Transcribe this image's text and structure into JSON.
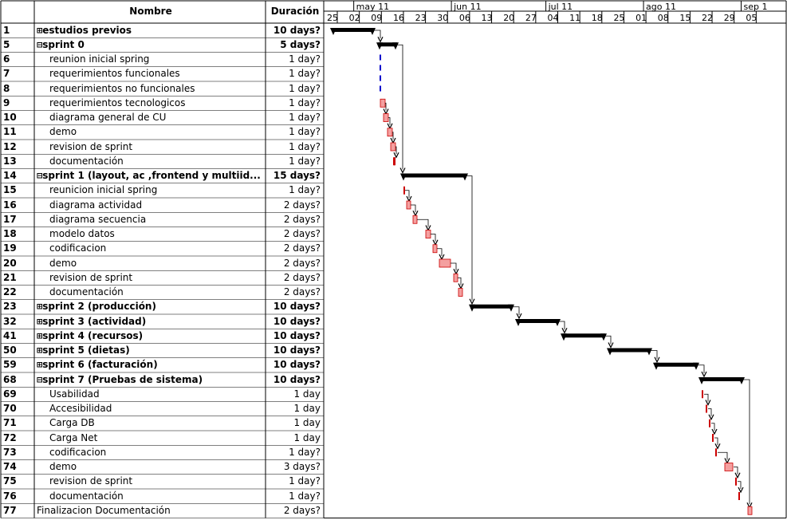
{
  "header": {
    "col_name": "Nombre",
    "col_duration": "Duración"
  },
  "months": [
    "may 11",
    "jun 11",
    "jul 11",
    "ago 11",
    "sep 1"
  ],
  "days": [
    "25",
    "02",
    "09",
    "16",
    "23",
    "30",
    "06",
    "13",
    "20",
    "27",
    "04",
    "11",
    "18",
    "25",
    "01",
    "08",
    "15",
    "22",
    "29",
    "05"
  ],
  "colors": {
    "bar": "#000000",
    "task_fill": "#f4a0a0",
    "task_border": "#cc0000",
    "dash": "#0000cc"
  },
  "rows": [
    {
      "id": "1",
      "name": "estudios previos",
      "dur": "10 days?",
      "summary": true,
      "marker": "⊞",
      "indent": false
    },
    {
      "id": "5",
      "name": "sprint 0",
      "dur": "5 days?",
      "summary": true,
      "marker": "⊟",
      "indent": false
    },
    {
      "id": "6",
      "name": "reunion inicial spring",
      "dur": "1 day?",
      "summary": false,
      "indent": true
    },
    {
      "id": "7",
      "name": "requerimientos funcionales",
      "dur": "1 day?",
      "summary": false,
      "indent": true
    },
    {
      "id": "8",
      "name": "requerimientos no funcionales",
      "dur": "1 day?",
      "summary": false,
      "indent": true
    },
    {
      "id": "9",
      "name": "requerimientos tecnologicos",
      "dur": "1 day?",
      "summary": false,
      "indent": true
    },
    {
      "id": "10",
      "name": "diagrama general de CU",
      "dur": "1 day?",
      "summary": false,
      "indent": true
    },
    {
      "id": "11",
      "name": "demo",
      "dur": "1 day?",
      "summary": false,
      "indent": true
    },
    {
      "id": "12",
      "name": "revision de sprint",
      "dur": "1 day?",
      "summary": false,
      "indent": true
    },
    {
      "id": "13",
      "name": "documentación",
      "dur": "1 day?",
      "summary": false,
      "indent": true
    },
    {
      "id": "14",
      "name": "sprint 1 (layout, ac ,frontend y multiid...",
      "dur": "15 days?",
      "summary": true,
      "marker": "⊟",
      "indent": false
    },
    {
      "id": "15",
      "name": "reunicion inicial spring",
      "dur": "1 day?",
      "summary": false,
      "indent": true
    },
    {
      "id": "16",
      "name": "diagrama actividad",
      "dur": "2 days?",
      "summary": false,
      "indent": true
    },
    {
      "id": "17",
      "name": "diagrama secuencia",
      "dur": "2 days?",
      "summary": false,
      "indent": true
    },
    {
      "id": "18",
      "name": "modelo datos",
      "dur": "2 days?",
      "summary": false,
      "indent": true
    },
    {
      "id": "19",
      "name": "codificacion",
      "dur": "2 days?",
      "summary": false,
      "indent": true
    },
    {
      "id": "20",
      "name": "demo",
      "dur": "2 days?",
      "summary": false,
      "indent": true
    },
    {
      "id": "21",
      "name": "revision de sprint",
      "dur": "2 days?",
      "summary": false,
      "indent": true
    },
    {
      "id": "22",
      "name": "documentación",
      "dur": "2 days?",
      "summary": false,
      "indent": true
    },
    {
      "id": "23",
      "name": "sprint 2 (producción)",
      "dur": "10 days?",
      "summary": true,
      "marker": "⊞",
      "indent": false
    },
    {
      "id": "32",
      "name": "sprint 3 (actividad)",
      "dur": "10 days?",
      "summary": true,
      "marker": "⊞",
      "indent": false
    },
    {
      "id": "41",
      "name": "sprint 4 (recursos)",
      "dur": "10 days?",
      "summary": true,
      "marker": "⊞",
      "indent": false
    },
    {
      "id": "50",
      "name": "sprint 5 (dietas)",
      "dur": "10 days?",
      "summary": true,
      "marker": "⊞",
      "indent": false
    },
    {
      "id": "59",
      "name": "sprint 6 (facturación)",
      "dur": "10 days?",
      "summary": true,
      "marker": "⊞",
      "indent": false
    },
    {
      "id": "68",
      "name": "sprint 7 (Pruebas de sistema)",
      "dur": "10 days?",
      "summary": true,
      "marker": "⊟",
      "indent": false
    },
    {
      "id": "69",
      "name": "Usabilidad",
      "dur": "1 day",
      "summary": false,
      "indent": true
    },
    {
      "id": "70",
      "name": "Accesibilidad",
      "dur": "1 day",
      "summary": false,
      "indent": true
    },
    {
      "id": "71",
      "name": "Carga DB",
      "dur": "1 day",
      "summary": false,
      "indent": true
    },
    {
      "id": "72",
      "name": "Carga Net",
      "dur": "1 day",
      "summary": false,
      "indent": true
    },
    {
      "id": "73",
      "name": "codificacion",
      "dur": "1 day?",
      "summary": false,
      "indent": true
    },
    {
      "id": "74",
      "name": "demo",
      "dur": "3 days?",
      "summary": false,
      "indent": true
    },
    {
      "id": "75",
      "name": "revision de sprint",
      "dur": "1 day?",
      "summary": false,
      "indent": true
    },
    {
      "id": "76",
      "name": "documentación",
      "dur": "1 day?",
      "summary": false,
      "indent": true
    },
    {
      "id": "77",
      "name": "Finalizacion Documentación",
      "dur": "2 days?",
      "summary": false,
      "indent": false
    }
  ]
}
